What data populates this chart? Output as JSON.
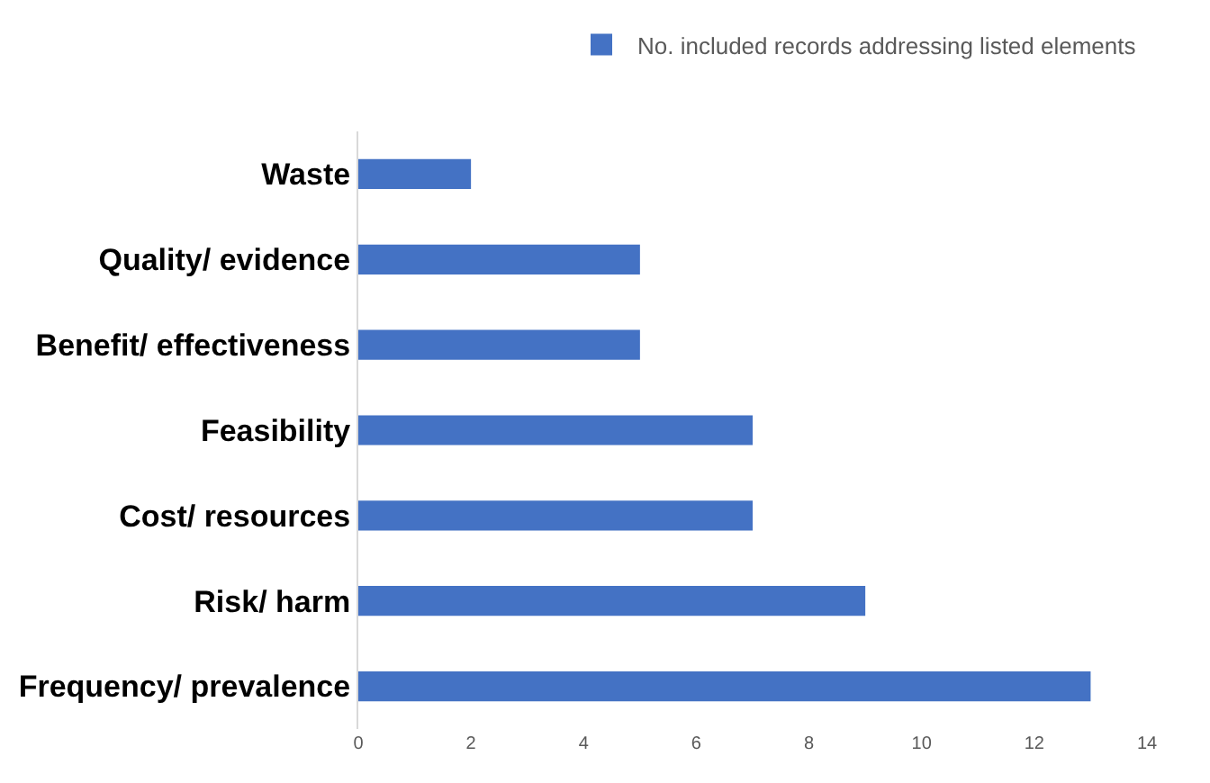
{
  "chart_data": {
    "type": "bar",
    "orientation": "horizontal",
    "categories": [
      "Waste",
      "Quality/ evidence",
      "Benefit/ effectiveness",
      "Feasibility",
      "Cost/ resources",
      "Risk/ harm",
      "Frequency/ prevalence"
    ],
    "series": [
      {
        "name": "No. included records addressing listed elements",
        "color": "#4472c4",
        "values": [
          2,
          5,
          5,
          7,
          7,
          9,
          13
        ]
      }
    ],
    "xlim": [
      0,
      14
    ],
    "xticks": [
      0,
      2,
      4,
      6,
      8,
      10,
      12,
      14
    ],
    "grid": false,
    "legend": "top right"
  }
}
